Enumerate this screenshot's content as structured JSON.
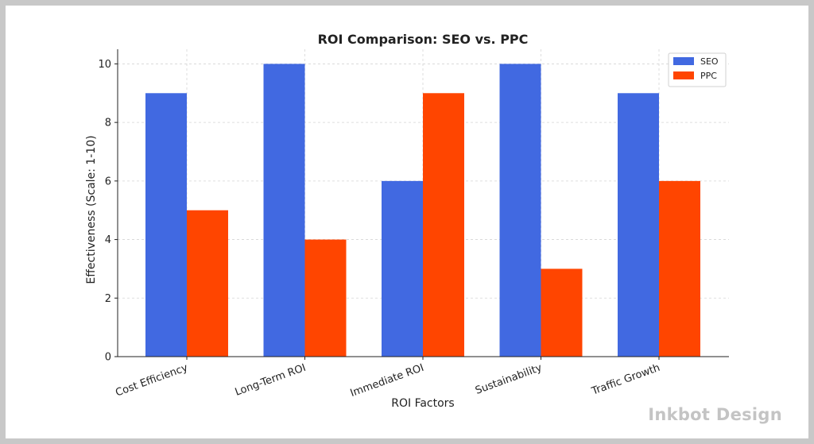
{
  "chart_data": {
    "type": "bar",
    "title": "ROI Comparison: SEO vs. PPC",
    "xlabel": "ROI Factors",
    "ylabel": "Effectiveness (Scale: 1-10)",
    "categories": [
      "Cost Efficiency",
      "Long-Term ROI",
      "Immediate ROI",
      "Sustainability",
      "Traffic Growth"
    ],
    "series": [
      {
        "name": "SEO",
        "values": [
          9,
          10,
          6,
          10,
          9
        ],
        "color": "#4169e1"
      },
      {
        "name": "PPC",
        "values": [
          5,
          4,
          9,
          3,
          6
        ],
        "color": "#ff4500"
      }
    ],
    "ylim": [
      0,
      10.5
    ],
    "yticks": [
      0,
      2,
      4,
      6,
      8,
      10
    ],
    "grid": true,
    "legend": "top-right"
  },
  "watermark": "Inkbot Design"
}
